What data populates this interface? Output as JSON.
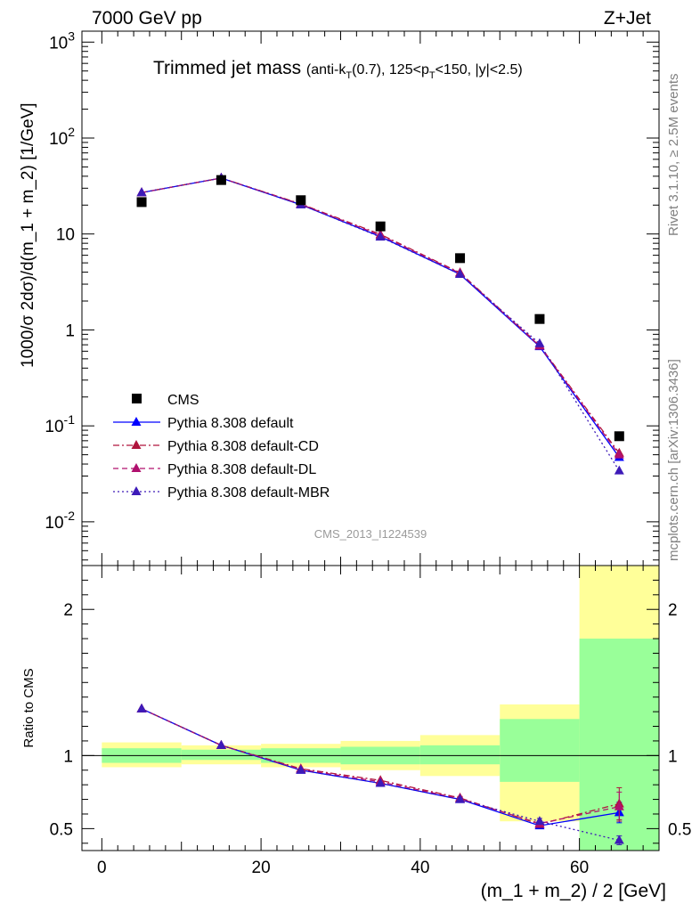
{
  "header": {
    "left": "7000 GeV pp",
    "right": "Z+Jet"
  },
  "side_labels": {
    "rivet": "Rivet 3.1.10, ≥ 2.5M events",
    "mcplots": "mcplots.cern.ch [arXiv:1306.3436]"
  },
  "chart_data": [
    {
      "type": "line",
      "title": "Trimmed jet mass",
      "subtitle": "(anti-k_T(0.7), 125<p_T<150, |y|<2.5)",
      "ylabel": "1000/σ 2dσ)/d(m_1 + m_2) [1/GeV]",
      "yscale": "log",
      "ylim": [
        0.0035,
        1300
      ],
      "xlim": [
        -2.5,
        70
      ],
      "y_tick_labels": [
        "10^-2",
        "10^-1",
        "1",
        "10",
        "10^2",
        "10^3"
      ],
      "watermark": "CMS_2013_I1224539",
      "x": [
        5,
        15,
        25,
        35,
        45,
        55,
        65
      ],
      "series": [
        {
          "name": "CMS",
          "style": "square",
          "color": "#000000",
          "values": [
            21.5,
            36.5,
            22.5,
            12.0,
            5.6,
            1.3,
            0.078
          ]
        },
        {
          "name": "Pythia 8.308 default",
          "style": "solid",
          "color": "#0000ff",
          "values": [
            27.0,
            38.3,
            20.2,
            9.4,
            3.8,
            0.67,
            0.047
          ]
        },
        {
          "name": "Pythia 8.308 default-CD",
          "style": "dashdot",
          "color": "#b0143c",
          "values": [
            27.0,
            38.3,
            20.6,
            9.9,
            3.95,
            0.69,
            0.052
          ]
        },
        {
          "name": "Pythia 8.308 default-DL",
          "style": "dashed",
          "color": "#b0106e",
          "values": [
            27.0,
            38.3,
            20.4,
            9.7,
            3.9,
            0.68,
            0.05
          ]
        },
        {
          "name": "Pythia 8.308 default-MBR",
          "style": "dotted",
          "color": "#3d1ab8",
          "values": [
            27.0,
            38.3,
            20.2,
            9.3,
            3.8,
            0.72,
            0.034
          ]
        }
      ]
    },
    {
      "type": "line",
      "ylabel": "Ratio to CMS",
      "xlabel": "(m_1 + m_2) / 2 [GeV]",
      "ylim": [
        0.35,
        2.3
      ],
      "xlim": [
        -2.5,
        70
      ],
      "x_ticks": [
        0,
        20,
        40,
        60
      ],
      "y_ticks": [
        0.5,
        1,
        2
      ],
      "x": [
        5,
        15,
        25,
        35,
        45,
        55,
        65
      ],
      "bin_edges": [
        0,
        10,
        20,
        30,
        40,
        50,
        60,
        70
      ],
      "band_green": [
        [
          0.95,
          1.05
        ],
        [
          0.97,
          1.04
        ],
        [
          0.95,
          1.05
        ],
        [
          0.94,
          1.06
        ],
        [
          0.94,
          1.07
        ],
        [
          0.82,
          1.25
        ],
        [
          0.35,
          1.8
        ]
      ],
      "band_yellow": [
        [
          0.92,
          1.09
        ],
        [
          0.94,
          1.07
        ],
        [
          0.92,
          1.08
        ],
        [
          0.9,
          1.1
        ],
        [
          0.86,
          1.14
        ],
        [
          0.55,
          1.35
        ],
        [
          0.35,
          2.3
        ]
      ],
      "series": [
        {
          "name": "Pythia 8.308 default",
          "style": "solid",
          "color": "#0000ff",
          "values": [
            1.32,
            1.07,
            0.9,
            0.81,
            0.7,
            0.52,
            0.61
          ],
          "errors": [
            0,
            0,
            0,
            0,
            0.01,
            0.02,
            0.07
          ]
        },
        {
          "name": "Pythia 8.308 default-CD",
          "style": "dashdot",
          "color": "#b0143c",
          "values": [
            1.32,
            1.07,
            0.91,
            0.83,
            0.71,
            0.53,
            0.67
          ],
          "errors": [
            0,
            0,
            0,
            0,
            0.01,
            0.02,
            0.11
          ]
        },
        {
          "name": "Pythia 8.308 default-DL",
          "style": "dashed",
          "color": "#b0106e",
          "values": [
            1.32,
            1.07,
            0.905,
            0.82,
            0.705,
            0.535,
            0.65
          ],
          "errors": [
            0,
            0,
            0,
            0,
            0.01,
            0.02,
            0.1
          ]
        },
        {
          "name": "Pythia 8.308 default-MBR",
          "style": "dotted",
          "color": "#3d1ab8",
          "values": [
            1.32,
            1.07,
            0.9,
            0.81,
            0.7,
            0.55,
            0.42
          ],
          "errors": [
            0,
            0,
            0,
            0,
            0.01,
            0.02,
            0.03
          ]
        }
      ]
    }
  ]
}
